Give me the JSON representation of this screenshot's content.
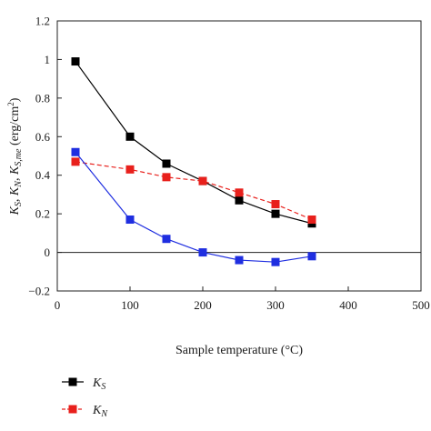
{
  "chart_data": {
    "type": "line",
    "xlabel": "Sample temperature (°C)",
    "ylabel": "K_S, K_N, K_S,me (erg/cm²)",
    "ylabel_parts": {
      "k1": "K",
      "s1": "S",
      "k2": "K",
      "s2": "N",
      "k3": "K",
      "s3": "S,me",
      "unit": "(erg/cm",
      "sup": "2",
      "close": ")"
    },
    "xlim": [
      0,
      500
    ],
    "ylim": [
      -0.2,
      1.2
    ],
    "xticks": [
      0,
      100,
      200,
      300,
      400,
      500
    ],
    "yticks": [
      -0.2,
      0,
      0.2,
      0.4,
      0.6,
      0.8,
      1,
      1.2
    ],
    "xtick_labels": [
      "0",
      "100",
      "200",
      "300",
      "400",
      "500"
    ],
    "ytick_labels": [
      "−0.2",
      "0",
      "0.2",
      "0.4",
      "0.6",
      "0.8",
      "1",
      "1.2"
    ],
    "zero_line": true,
    "grid": false,
    "legend_position": "below-left",
    "series": [
      {
        "name": "K_S",
        "label_main": "K",
        "label_sub": "S",
        "color": "#000000",
        "line_style": "solid",
        "marker": "square",
        "x": [
          25,
          100,
          150,
          200,
          250,
          300,
          350
        ],
        "y": [
          0.99,
          0.6,
          0.46,
          0.37,
          0.27,
          0.2,
          0.15
        ]
      },
      {
        "name": "K_N",
        "label_main": "K",
        "label_sub": "N",
        "color": "#e8201c",
        "line_style": "dashed",
        "marker": "square",
        "x": [
          25,
          100,
          150,
          200,
          250,
          300,
          350
        ],
        "y": [
          0.47,
          0.43,
          0.39,
          0.37,
          0.31,
          0.25,
          0.17
        ]
      },
      {
        "name": "K_S,me",
        "label_main": "K",
        "label_sub": "S,me",
        "color": "#1f2ee0",
        "line_style": "solid",
        "marker": "square",
        "x": [
          25,
          100,
          150,
          200,
          250,
          300,
          350
        ],
        "y": [
          0.52,
          0.17,
          0.07,
          0.0,
          -0.04,
          -0.05,
          -0.02
        ]
      }
    ]
  }
}
